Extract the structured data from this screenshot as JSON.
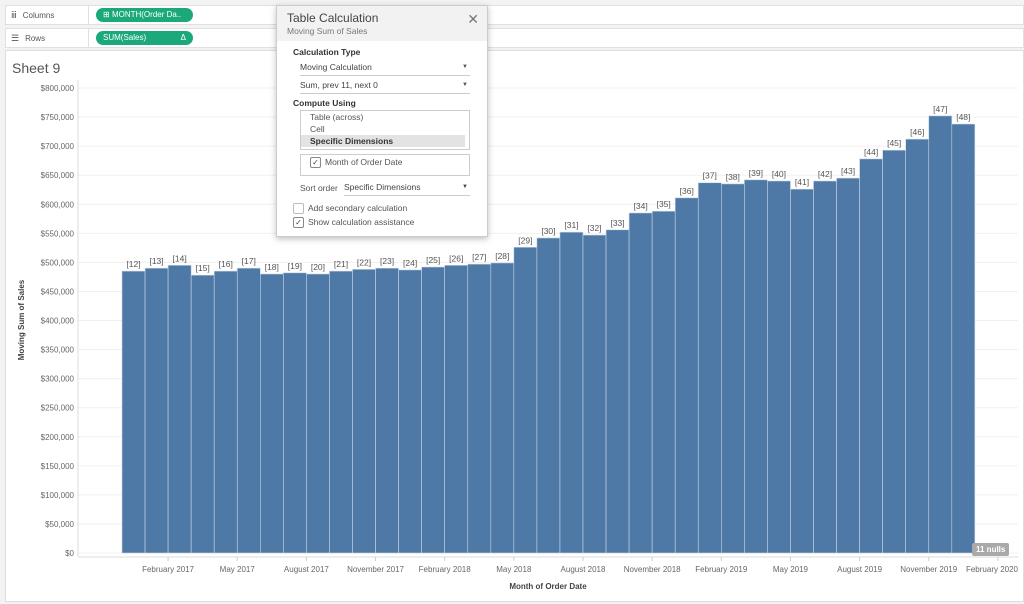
{
  "shelves": {
    "columns": {
      "label": "Columns",
      "pill": "MONTH(Order Da..",
      "pill_icon": "plus-box-icon"
    },
    "rows": {
      "label": "Rows",
      "pill": "SUM(Sales)",
      "pill_badge": "Δ"
    }
  },
  "sheet": {
    "title": "Sheet 9",
    "nulls_badge": "11 nulls"
  },
  "colors": {
    "bar": "#4e79a7",
    "pill": "#1ba87a"
  },
  "dialog": {
    "title": "Table Calculation",
    "subtitle": "Moving Sum of Sales",
    "close": "✕",
    "calc_type_heading": "Calculation Type",
    "calc_type_value": "Moving Calculation",
    "calc_detail_value": "Sum, prev 11, next 0",
    "compute_heading": "Compute Using",
    "compute_options": [
      "Table (across)",
      "Cell",
      "Specific Dimensions"
    ],
    "dimension": "Month of Order Date",
    "sort_label": "Sort order",
    "sort_value": "Specific Dimensions",
    "secondary_label": "Add secondary calculation",
    "assist_label": "Show calculation assistance"
  },
  "chart_data": {
    "type": "bar",
    "title": "Sheet 9",
    "xlabel": "Month of Order Date",
    "ylabel": "Moving Sum of Sales",
    "ylim": [
      0,
      800000
    ],
    "yticks": [
      "$0",
      "$50,000",
      "$100,000",
      "$150,000",
      "$200,000",
      "$250,000",
      "$300,000",
      "$350,000",
      "$400,000",
      "$450,000",
      "$500,000",
      "$550,000",
      "$600,000",
      "$650,000",
      "$700,000",
      "$750,000",
      "$800,000"
    ],
    "xticks": [
      {
        "index": 2,
        "label": "February 2017"
      },
      {
        "index": 5,
        "label": "May 2017"
      },
      {
        "index": 8,
        "label": "August 2017"
      },
      {
        "index": 11,
        "label": "November 2017"
      },
      {
        "index": 14,
        "label": "February 2018"
      },
      {
        "index": 17,
        "label": "May 2018"
      },
      {
        "index": 20,
        "label": "August 2018"
      },
      {
        "index": 23,
        "label": "November 2018"
      },
      {
        "index": 26,
        "label": "February 2019"
      },
      {
        "index": 29,
        "label": "May 2019"
      },
      {
        "index": 32,
        "label": "August 2019"
      },
      {
        "index": 35,
        "label": "November 2019"
      },
      {
        "index": 38,
        "label": "February 2020"
      }
    ],
    "labels": [
      "[12]",
      "[13]",
      "[14]",
      "[15]",
      "[16]",
      "[17]",
      "[18]",
      "[19]",
      "[20]",
      "[21]",
      "[22]",
      "[23]",
      "[24]",
      "[25]",
      "[26]",
      "[27]",
      "[28]",
      "[29]",
      "[30]",
      "[31]",
      "[32]",
      "[33]",
      "[34]",
      "[35]",
      "[36]",
      "[37]",
      "[38]",
      "[39]",
      "[40]",
      "[41]",
      "[42]",
      "[43]",
      "[44]",
      "[45]",
      "[46]",
      "[47]",
      "[48]"
    ],
    "values": [
      485000,
      490000,
      495000,
      478000,
      485000,
      490000,
      480000,
      482000,
      480000,
      485000,
      488000,
      490000,
      487000,
      492000,
      495000,
      497000,
      499000,
      526000,
      542000,
      552000,
      547000,
      556000,
      585000,
      588000,
      611000,
      637000,
      635000,
      642000,
      640000,
      626000,
      640000,
      645000,
      678000,
      693000,
      712000,
      752000,
      738000
    ],
    "nulls": 11
  }
}
